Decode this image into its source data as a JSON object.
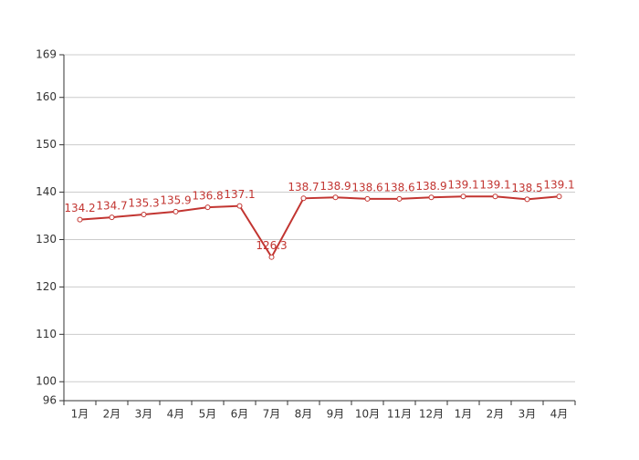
{
  "chart_data": {
    "type": "line",
    "categories": [
      "1月",
      "2月",
      "3月",
      "4月",
      "5月",
      "6月",
      "7月",
      "8月",
      "9月",
      "10月",
      "11月",
      "12月",
      "1月",
      "2月",
      "3月",
      "4月"
    ],
    "series": [
      {
        "color": "#c23531",
        "values": [
          134.2,
          134.7,
          135.3,
          135.9,
          136.8,
          137.1,
          126.3,
          138.7,
          138.9,
          138.6,
          138.6,
          138.9,
          139.1,
          139.1,
          138.5,
          139.1
        ]
      }
    ],
    "ylim": [
      96,
      169
    ],
    "yticks": [
      96,
      100,
      110,
      120,
      130,
      140,
      150,
      160,
      169
    ],
    "grid": true
  }
}
